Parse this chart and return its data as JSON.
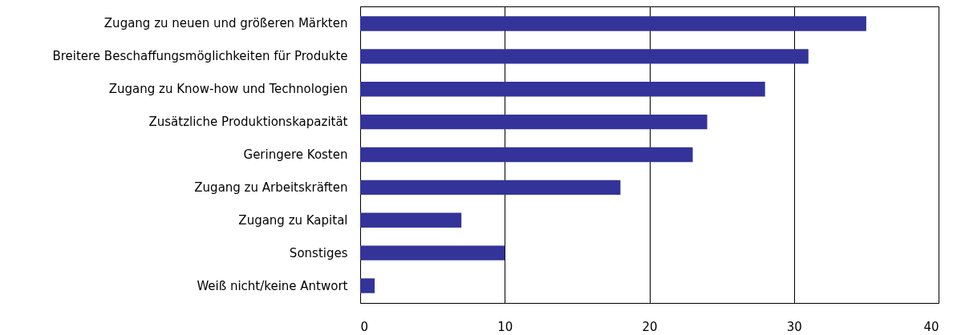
{
  "chart_data": {
    "type": "bar",
    "orientation": "horizontal",
    "categories": [
      "Zugang zu neuen und größeren Märkten",
      "Breitere Beschaffungsmöglichkeiten für Produkte",
      "Zugang zu Know-how und Technologien",
      "Zusätzliche Produktionskapazität",
      "Geringere Kosten",
      "Zugang zu Arbeitskräften",
      "Zugang zu Kapital",
      "Sonstiges",
      "Weiß nicht/keine Antwort"
    ],
    "values": [
      35,
      31,
      28,
      24,
      23,
      18,
      7,
      10,
      1
    ],
    "color": "#333399",
    "xlim": [
      0,
      40
    ],
    "xticks": [
      0,
      10,
      20,
      30,
      40
    ],
    "grid": "x"
  }
}
